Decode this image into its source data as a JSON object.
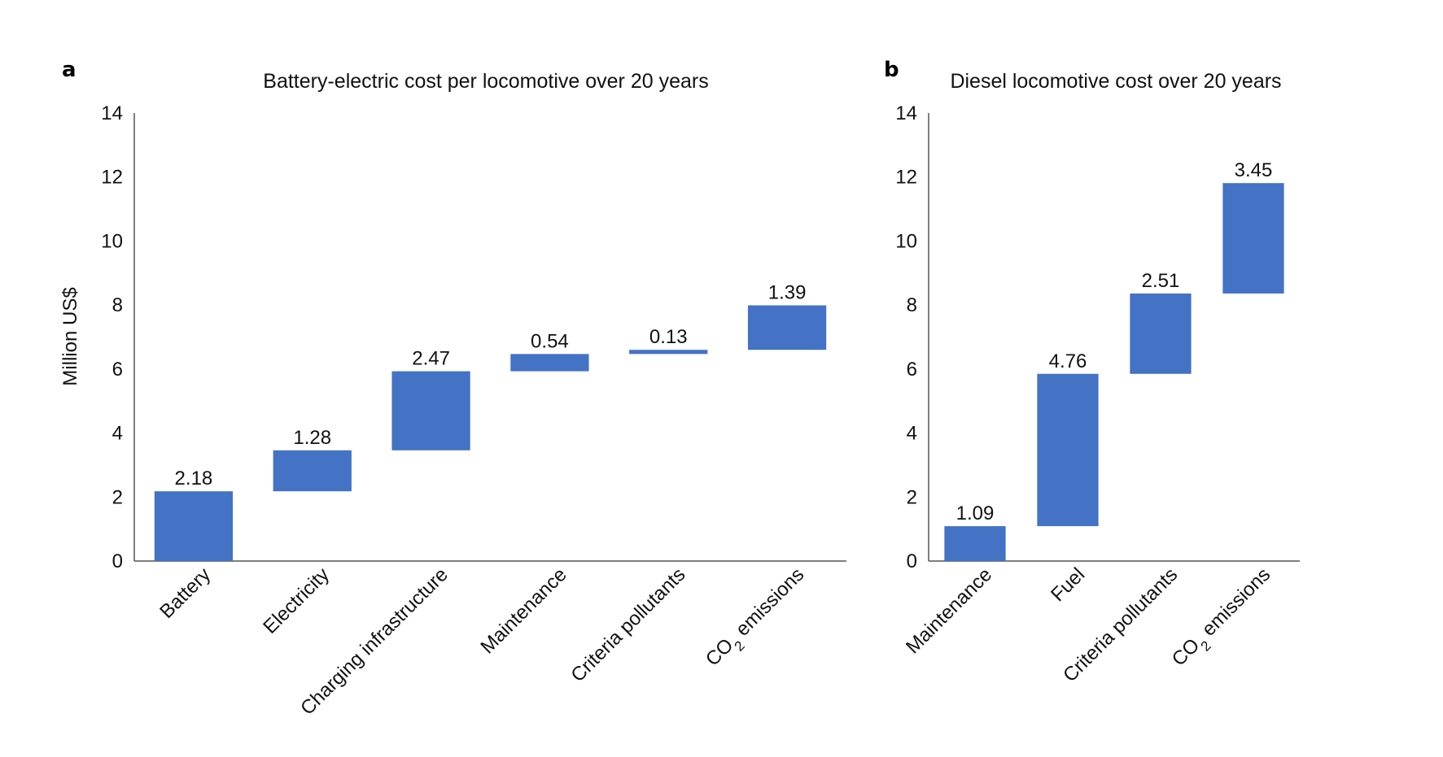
{
  "chart_data": [
    {
      "type": "bar",
      "subtype": "waterfall",
      "panel": "a",
      "title": "Battery-electric cost per locomotive over 20 years",
      "ylabel": "Million US$",
      "ylim": [
        0,
        14
      ],
      "yticks": [
        "0",
        "2",
        "4",
        "6",
        "8",
        "10",
        "12",
        "14"
      ],
      "categories": [
        {
          "label": "Battery"
        },
        {
          "label": "Electricity"
        },
        {
          "label": "Charging infrastructure"
        },
        {
          "label": "Maintenance"
        },
        {
          "label": "Criteria pollutants"
        },
        {
          "label": "CO",
          "sub": "2",
          "rest": " emissions"
        }
      ],
      "values": [
        2.18,
        1.28,
        2.47,
        0.54,
        0.13,
        1.39
      ],
      "value_labels": [
        "2.18",
        "1.28",
        "2.47",
        "0.54",
        "0.13",
        "1.39"
      ],
      "bar_color": "#4472c4",
      "grid": false
    },
    {
      "type": "bar",
      "subtype": "waterfall",
      "panel": "b",
      "title": "Diesel locomotive cost over 20 years",
      "ylabel": "",
      "ylim": [
        0,
        14
      ],
      "yticks": [
        "0",
        "2",
        "4",
        "6",
        "8",
        "10",
        "12",
        "14"
      ],
      "categories": [
        {
          "label": "Maintenance"
        },
        {
          "label": "Fuel"
        },
        {
          "label": "Criteria pollutants"
        },
        {
          "label": "CO",
          "sub": "2",
          "rest": " emissions"
        }
      ],
      "values": [
        1.09,
        4.76,
        2.51,
        3.45
      ],
      "value_labels": [
        "1.09",
        "4.76",
        "2.51",
        "3.45"
      ],
      "bar_color": "#4472c4",
      "grid": false
    }
  ]
}
